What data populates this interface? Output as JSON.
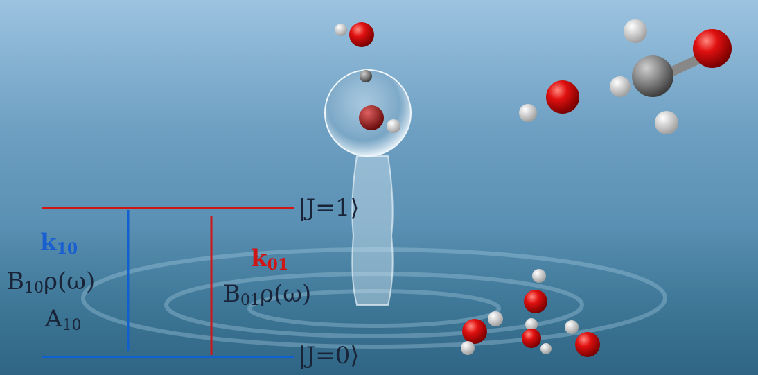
{
  "levels": {
    "upper": "|J=1⟩",
    "lower": "|J=0⟩"
  },
  "transitions": {
    "downward": {
      "rate": {
        "symbol": "k",
        "subscript": "10"
      },
      "stimulated": {
        "symbol": "B",
        "subscript": "10",
        "factor": "ρ(ω)"
      },
      "spontaneous": {
        "symbol": "A",
        "subscript": "10"
      }
    },
    "upward": {
      "rate": {
        "symbol": "k",
        "subscript": "01"
      },
      "stimulated": {
        "symbol": "B",
        "subscript": "01",
        "factor": "ρ(ω)"
      }
    }
  }
}
